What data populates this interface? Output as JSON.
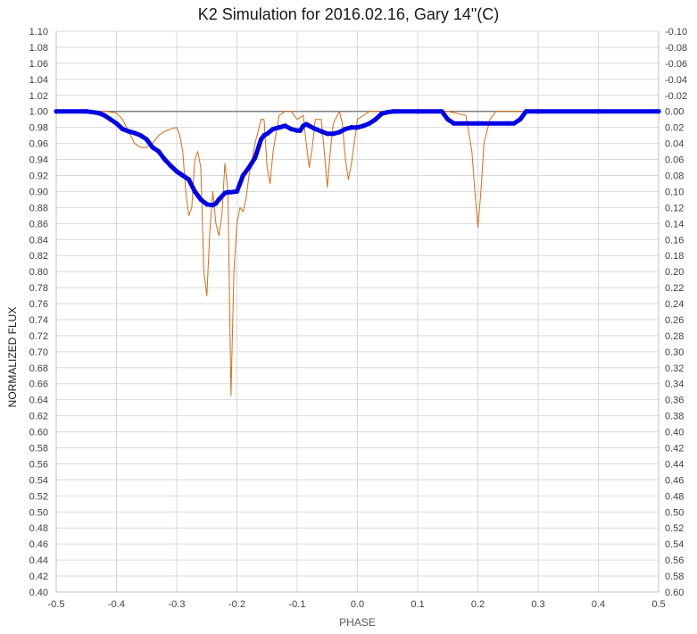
{
  "chart_data": {
    "type": "line",
    "title": "K2 Simulation for 2016.02.16, Gary 14\"(C)",
    "xlabel": "PHASE",
    "ylabel": "NORMALIZED FLUX",
    "xlim": [
      -0.5,
      0.5
    ],
    "ylim": [
      0.4,
      1.1
    ],
    "y2lim": [
      0.6,
      -0.1
    ],
    "grid": true,
    "legend": "none",
    "x_ticks": [
      "-0.5",
      "-0.4",
      "-0.3",
      "-0.2",
      "-0.1",
      "0.0",
      "0.1",
      "0.2",
      "0.3",
      "0.4",
      "0.5"
    ],
    "y_ticks": [
      "1.10",
      "1.08",
      "1.06",
      "1.04",
      "1.02",
      "1.00",
      "0.98",
      "0.96",
      "0.94",
      "0.92",
      "0.90",
      "0.88",
      "0.86",
      "0.84",
      "0.82",
      "0.80",
      "0.78",
      "0.76",
      "0.74",
      "0.72",
      "0.70",
      "0.68",
      "0.66",
      "0.64",
      "0.62",
      "0.60",
      "0.58",
      "0.56",
      "0.54",
      "0.52",
      "0.50",
      "0.48",
      "0.46",
      "0.44",
      "0.42",
      "0.40"
    ],
    "y2_ticks": [
      "-0.10",
      "-0.08",
      "-0.06",
      "-0.04",
      "-0.02",
      "0.00",
      "0.02",
      "0.04",
      "0.06",
      "0.08",
      "0.10",
      "0.12",
      "0.14",
      "0.16",
      "0.18",
      "0.20",
      "0.22",
      "0.24",
      "0.26",
      "0.28",
      "0.30",
      "0.32",
      "0.34",
      "0.36",
      "0.38",
      "0.40",
      "0.42",
      "0.44",
      "0.46",
      "0.48",
      "0.50",
      "0.52",
      "0.54",
      "0.56",
      "0.58",
      "0.60"
    ],
    "reference_line": {
      "y": 1.0,
      "color": "#808080"
    },
    "series": [
      {
        "color": "#d46e17",
        "style": "thin-line",
        "x": [
          -0.5,
          -0.44,
          -0.42,
          -0.4,
          -0.39,
          -0.38,
          -0.37,
          -0.36,
          -0.35,
          -0.34,
          -0.33,
          -0.32,
          -0.31,
          -0.3,
          -0.295,
          -0.29,
          -0.285,
          -0.28,
          -0.275,
          -0.27,
          -0.265,
          -0.26,
          -0.255,
          -0.25,
          -0.245,
          -0.24,
          -0.235,
          -0.23,
          -0.225,
          -0.22,
          -0.215,
          -0.21,
          -0.205,
          -0.2,
          -0.195,
          -0.19,
          -0.185,
          -0.18,
          -0.17,
          -0.16,
          -0.155,
          -0.15,
          -0.145,
          -0.14,
          -0.13,
          -0.12,
          -0.11,
          -0.1,
          -0.09,
          -0.085,
          -0.08,
          -0.075,
          -0.07,
          -0.06,
          -0.055,
          -0.05,
          -0.045,
          -0.04,
          -0.03,
          -0.025,
          -0.02,
          -0.015,
          -0.01,
          0.0,
          0.02,
          0.05,
          0.1,
          0.15,
          0.18,
          0.19,
          0.195,
          0.2,
          0.205,
          0.21,
          0.22,
          0.23,
          0.26,
          0.3,
          0.4,
          0.5
        ],
        "y": [
          1.0,
          1.0,
          1.0,
          0.998,
          0.99,
          0.975,
          0.96,
          0.955,
          0.955,
          0.96,
          0.97,
          0.975,
          0.978,
          0.98,
          0.97,
          0.95,
          0.9,
          0.87,
          0.88,
          0.94,
          0.95,
          0.93,
          0.8,
          0.77,
          0.85,
          0.9,
          0.86,
          0.845,
          0.87,
          0.935,
          0.9,
          0.645,
          0.8,
          0.86,
          0.88,
          0.875,
          0.89,
          0.92,
          0.96,
          0.99,
          0.99,
          0.93,
          0.91,
          0.95,
          0.995,
          1.0,
          1.0,
          0.99,
          0.995,
          0.96,
          0.93,
          0.955,
          0.99,
          0.99,
          0.95,
          0.905,
          0.95,
          0.985,
          1.0,
          0.985,
          0.94,
          0.915,
          0.935,
          0.99,
          1.0,
          1.0,
          1.0,
          1.0,
          0.995,
          0.95,
          0.9,
          0.855,
          0.9,
          0.96,
          0.99,
          1.0,
          1.0,
          1.0,
          1.0,
          1.0
        ]
      },
      {
        "color": "#0000e6",
        "style": "thick-markers",
        "x": [
          -0.5,
          -0.45,
          -0.43,
          -0.42,
          -0.41,
          -0.4,
          -0.39,
          -0.38,
          -0.37,
          -0.36,
          -0.35,
          -0.34,
          -0.33,
          -0.32,
          -0.31,
          -0.3,
          -0.29,
          -0.28,
          -0.27,
          -0.265,
          -0.26,
          -0.25,
          -0.24,
          -0.235,
          -0.23,
          -0.22,
          -0.215,
          -0.21,
          -0.2,
          -0.195,
          -0.19,
          -0.18,
          -0.17,
          -0.16,
          -0.155,
          -0.15,
          -0.14,
          -0.13,
          -0.12,
          -0.11,
          -0.1,
          -0.095,
          -0.09,
          -0.085,
          -0.08,
          -0.07,
          -0.06,
          -0.05,
          -0.04,
          -0.03,
          -0.02,
          -0.01,
          0.0,
          0.01,
          0.02,
          0.03,
          0.04,
          0.05,
          0.06,
          0.1,
          0.14,
          0.15,
          0.16,
          0.2,
          0.25,
          0.26,
          0.27,
          0.28,
          0.3,
          0.4,
          0.5
        ],
        "y": [
          1.0,
          1.0,
          0.998,
          0.995,
          0.99,
          0.985,
          0.978,
          0.975,
          0.973,
          0.97,
          0.965,
          0.955,
          0.95,
          0.94,
          0.932,
          0.925,
          0.92,
          0.915,
          0.9,
          0.895,
          0.89,
          0.884,
          0.883,
          0.885,
          0.89,
          0.898,
          0.899,
          0.899,
          0.9,
          0.91,
          0.92,
          0.93,
          0.942,
          0.965,
          0.97,
          0.972,
          0.978,
          0.98,
          0.982,
          0.978,
          0.976,
          0.976,
          0.982,
          0.984,
          0.982,
          0.978,
          0.975,
          0.972,
          0.972,
          0.974,
          0.978,
          0.98,
          0.98,
          0.982,
          0.985,
          0.99,
          0.997,
          0.999,
          1.0,
          1.0,
          1.0,
          0.99,
          0.985,
          0.985,
          0.985,
          0.985,
          0.99,
          1.0,
          1.0,
          1.0,
          1.0
        ]
      }
    ]
  }
}
